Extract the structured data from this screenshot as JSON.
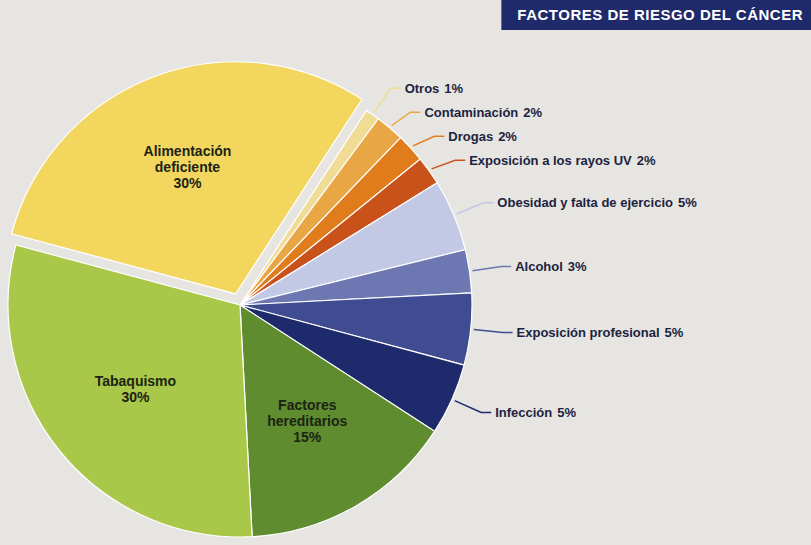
{
  "chart_data": {
    "type": "pie",
    "title": "FACTORES DE RIESGO DEL CÁNCER",
    "categories": [
      "Alimentación deficiente",
      "Otros",
      "Contaminación",
      "Drogas",
      "Exposición a los rayos UV",
      "Obesidad y falta de ejercicio",
      "Alcohol",
      "Exposición profesional",
      "Infección",
      "Factores hereditarios",
      "Tabaquismo"
    ],
    "values": [
      30,
      1,
      2,
      2,
      2,
      5,
      3,
      5,
      5,
      15,
      30
    ],
    "value_labels": [
      "30%",
      "1%",
      "2%",
      "2%",
      "2%",
      "5%",
      "3%",
      "5%",
      "5%",
      "15%",
      "30%"
    ],
    "colors": [
      "#f3d65e",
      "#f1dc96",
      "#e9a645",
      "#e07c1c",
      "#c9521b",
      "#c3c8e4",
      "#6d77b2",
      "#3f4c92",
      "#1d2a6c",
      "#5e8c2f",
      "#a9c748"
    ],
    "data_labels": true
  }
}
